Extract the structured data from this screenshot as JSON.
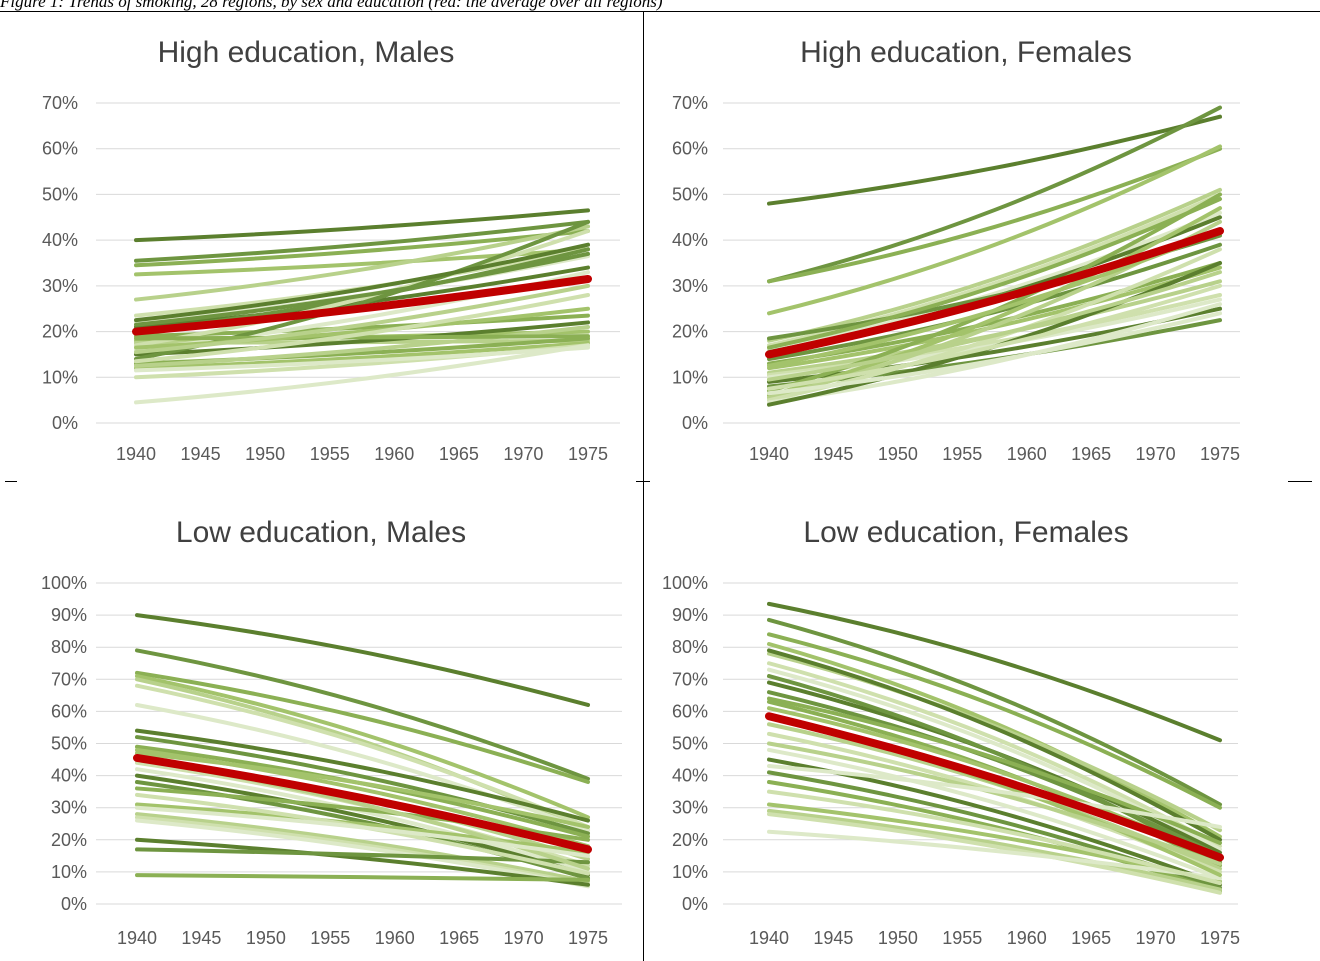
{
  "caption": "Figure 1: Trends of smoking, 28 regions, by sex and education (red: the average over all regions)",
  "chart_data": [
    {
      "type": "line",
      "title": "High education, Males",
      "x": [
        1940,
        1945,
        1950,
        1955,
        1960,
        1965,
        1970,
        1975
      ],
      "y_ticks": [
        "0%",
        "10%",
        "20%",
        "30%",
        "40%",
        "50%",
        "60%",
        "70%"
      ],
      "ylim": [
        0,
        70
      ],
      "grid": true,
      "average_color": "#c00000",
      "series_colors": [
        "#5b7f2e",
        "#6e9540",
        "#8bb054",
        "#a3c36b",
        "#b8d18b",
        "#cfe0ad",
        "#dde9c8"
      ],
      "series": [
        {
          "start": 40,
          "end": 46.5
        },
        {
          "start": 35.5,
          "end": 44
        },
        {
          "start": 34.5,
          "end": 42
        },
        {
          "start": 32.5,
          "end": 38
        },
        {
          "start": 27,
          "end": 43
        },
        {
          "start": 23.5,
          "end": 38
        },
        {
          "start": 22,
          "end": 36.5
        },
        {
          "start": 21,
          "end": 34
        },
        {
          "start": 20,
          "end": 38
        },
        {
          "start": 19,
          "end": 23.5
        },
        {
          "start": 18,
          "end": 20
        },
        {
          "start": 17.5,
          "end": 18
        },
        {
          "start": 17,
          "end": 42
        },
        {
          "start": 16,
          "end": 33
        },
        {
          "start": 15,
          "end": 22
        },
        {
          "start": 14,
          "end": 44
        },
        {
          "start": 13,
          "end": 18.5
        },
        {
          "start": 12,
          "end": 17.5
        },
        {
          "start": 12.5,
          "end": 21
        },
        {
          "start": 10,
          "end": 17
        },
        {
          "start": 4.5,
          "end": 17
        },
        {
          "start": 22.5,
          "end": 39
        },
        {
          "start": 21.5,
          "end": 37
        },
        {
          "start": 18.5,
          "end": 19
        },
        {
          "start": 16.5,
          "end": 25
        },
        {
          "start": 15.5,
          "end": 30
        },
        {
          "start": 13.5,
          "end": 28
        },
        {
          "start": 11.5,
          "end": 16.5
        }
      ],
      "average": {
        "start": 20,
        "end": 31.5
      }
    },
    {
      "type": "line",
      "title": "High education, Females",
      "x": [
        1940,
        1945,
        1950,
        1955,
        1960,
        1965,
        1970,
        1975
      ],
      "y_ticks": [
        "0%",
        "10%",
        "20%",
        "30%",
        "40%",
        "50%",
        "60%",
        "70%"
      ],
      "ylim": [
        0,
        70
      ],
      "grid": true,
      "average_color": "#c00000",
      "series_colors": [
        "#5b7f2e",
        "#6e9540",
        "#8bb054",
        "#a3c36b",
        "#b8d18b",
        "#cfe0ad",
        "#dde9c8"
      ],
      "series": [
        {
          "start": 48,
          "end": 67
        },
        {
          "start": 31,
          "end": 69
        },
        {
          "start": 31,
          "end": 60
        },
        {
          "start": 24,
          "end": 60.5
        },
        {
          "start": 18,
          "end": 51
        },
        {
          "start": 17,
          "end": 50
        },
        {
          "start": 16,
          "end": 46
        },
        {
          "start": 15.5,
          "end": 45
        },
        {
          "start": 14,
          "end": 39
        },
        {
          "start": 13,
          "end": 35
        },
        {
          "start": 12,
          "end": 34
        },
        {
          "start": 11,
          "end": 31
        },
        {
          "start": 10.5,
          "end": 28
        },
        {
          "start": 10,
          "end": 27
        },
        {
          "start": 9,
          "end": 25
        },
        {
          "start": 8,
          "end": 22.5
        },
        {
          "start": 7,
          "end": 50
        },
        {
          "start": 6,
          "end": 47
        },
        {
          "start": 5.5,
          "end": 44
        },
        {
          "start": 5,
          "end": 38
        },
        {
          "start": 4.5,
          "end": 26
        },
        {
          "start": 4,
          "end": 35
        },
        {
          "start": 18.5,
          "end": 41
        },
        {
          "start": 16.5,
          "end": 49
        },
        {
          "start": 12.5,
          "end": 42
        },
        {
          "start": 9.5,
          "end": 33
        },
        {
          "start": 7.5,
          "end": 30
        },
        {
          "start": 6.5,
          "end": 24
        }
      ],
      "average": {
        "start": 15,
        "end": 42
      }
    },
    {
      "type": "line",
      "title": "Low education, Males",
      "x": [
        1940,
        1945,
        1950,
        1955,
        1960,
        1965,
        1970,
        1975
      ],
      "y_ticks": [
        "0%",
        "10%",
        "20%",
        "30%",
        "40%",
        "50%",
        "60%",
        "70%",
        "80%",
        "90%",
        "100%"
      ],
      "ylim": [
        0,
        100
      ],
      "grid": true,
      "average_color": "#c00000",
      "series_colors": [
        "#5b7f2e",
        "#6e9540",
        "#8bb054",
        "#a3c36b",
        "#b8d18b",
        "#cfe0ad",
        "#dde9c8"
      ],
      "series": [
        {
          "start": 90,
          "end": 62
        },
        {
          "start": 79,
          "end": 39
        },
        {
          "start": 72,
          "end": 38
        },
        {
          "start": 71,
          "end": 27
        },
        {
          "start": 70,
          "end": 23
        },
        {
          "start": 68,
          "end": 24
        },
        {
          "start": 62,
          "end": 23
        },
        {
          "start": 54,
          "end": 26
        },
        {
          "start": 52,
          "end": 22
        },
        {
          "start": 49,
          "end": 21
        },
        {
          "start": 48,
          "end": 18
        },
        {
          "start": 46,
          "end": 14
        },
        {
          "start": 44,
          "end": 12
        },
        {
          "start": 42,
          "end": 10
        },
        {
          "start": 40,
          "end": 9
        },
        {
          "start": 38,
          "end": 8
        },
        {
          "start": 36,
          "end": 20
        },
        {
          "start": 31,
          "end": 16
        },
        {
          "start": 28,
          "end": 7
        },
        {
          "start": 27,
          "end": 6
        },
        {
          "start": 26,
          "end": 5.5
        },
        {
          "start": 20,
          "end": 6
        },
        {
          "start": 17,
          "end": 13
        },
        {
          "start": 9,
          "end": 7.5
        },
        {
          "start": 47,
          "end": 24
        },
        {
          "start": 45,
          "end": 11
        },
        {
          "start": 34,
          "end": 9.5
        },
        {
          "start": 30,
          "end": 15
        }
      ],
      "average": {
        "start": 45.5,
        "end": 17
      }
    },
    {
      "type": "line",
      "title": "Low education, Females",
      "x": [
        1940,
        1945,
        1950,
        1955,
        1960,
        1965,
        1970,
        1975
      ],
      "y_ticks": [
        "0%",
        "10%",
        "20%",
        "30%",
        "40%",
        "50%",
        "60%",
        "70%",
        "80%",
        "90%",
        "100%"
      ],
      "ylim": [
        0,
        100
      ],
      "grid": true,
      "average_color": "#c00000",
      "series_colors": [
        "#5b7f2e",
        "#6e9540",
        "#8bb054",
        "#a3c36b",
        "#b8d18b",
        "#cfe0ad",
        "#dde9c8"
      ],
      "series": [
        {
          "start": 93.5,
          "end": 51
        },
        {
          "start": 88.5,
          "end": 31
        },
        {
          "start": 84,
          "end": 30
        },
        {
          "start": 81,
          "end": 21
        },
        {
          "start": 78,
          "end": 23
        },
        {
          "start": 75,
          "end": 18
        },
        {
          "start": 73,
          "end": 17
        },
        {
          "start": 69,
          "end": 16
        },
        {
          "start": 66,
          "end": 15
        },
        {
          "start": 63,
          "end": 12
        },
        {
          "start": 61,
          "end": 14
        },
        {
          "start": 56,
          "end": 11
        },
        {
          "start": 53,
          "end": 10
        },
        {
          "start": 48,
          "end": 8
        },
        {
          "start": 45,
          "end": 6
        },
        {
          "start": 41,
          "end": 5
        },
        {
          "start": 38,
          "end": 4
        },
        {
          "start": 31,
          "end": 7
        },
        {
          "start": 29,
          "end": 4.5
        },
        {
          "start": 28,
          "end": 3.5
        },
        {
          "start": 22.5,
          "end": 8
        },
        {
          "start": 79,
          "end": 20
        },
        {
          "start": 71,
          "end": 13
        },
        {
          "start": 64,
          "end": 19
        },
        {
          "start": 58,
          "end": 9
        },
        {
          "start": 50,
          "end": 12.5
        },
        {
          "start": 35,
          "end": 6.5
        },
        {
          "start": 43,
          "end": 24
        }
      ],
      "average": {
        "start": 58.5,
        "end": 14.5
      }
    }
  ]
}
